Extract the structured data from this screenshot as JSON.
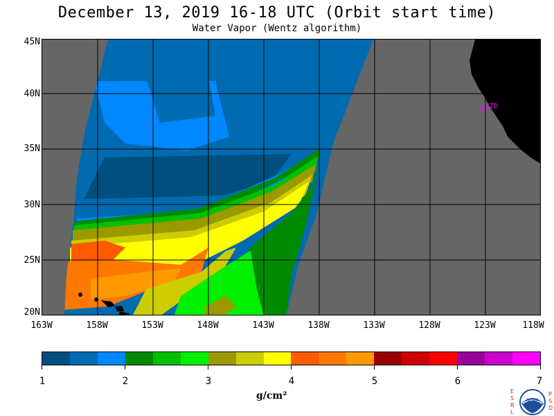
{
  "title": "December 13, 2019  16-18 UTC  (Orbit start time)",
  "subtitle": "Water Vapor (Wentz algorithm)",
  "map": {
    "lat_labels": [
      "45N",
      "40N",
      "35N",
      "30N",
      "25N",
      "20N"
    ],
    "lon_labels": [
      "163W",
      "158W",
      "153W",
      "148W",
      "143W",
      "138W",
      "133W",
      "128W",
      "123W",
      "118W"
    ],
    "station_label": "CZD",
    "colors": {
      "no_data": "#666666",
      "land": "#000000",
      "grid": "#000000",
      "station": "#ff00ff"
    }
  },
  "colorbar": {
    "colors": [
      "#004f7f",
      "#006bb0",
      "#0088ff",
      "#008a00",
      "#00c000",
      "#00f000",
      "#9a9a00",
      "#cccc00",
      "#ffff00",
      "#ff5a00",
      "#ff7800",
      "#ff9900",
      "#990000",
      "#cc0000",
      "#ff0000",
      "#990099",
      "#cc00cc",
      "#ff00ff"
    ],
    "tick_labels": [
      "1",
      "2",
      "3",
      "4",
      "5",
      "6",
      "7"
    ],
    "units": "g/cm²"
  },
  "logo": {
    "left_letters": [
      "E",
      "S",
      "R",
      "L"
    ],
    "right_letters": [
      "P",
      "S",
      "D"
    ],
    "emblem_text": "NOAA"
  }
}
